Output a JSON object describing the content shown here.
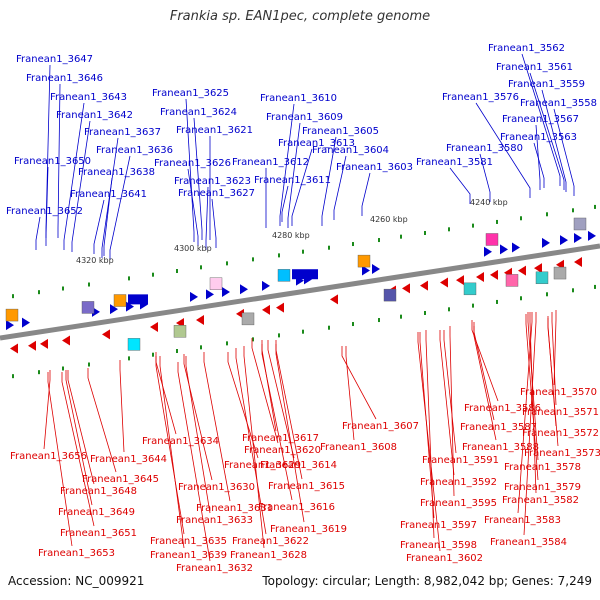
{
  "title": "Frankia sp. EAN1pec, complete genome",
  "footer": {
    "accession": "Accession: NC_009921",
    "summary": "Topology: circular; Length: 8,982,042 bp; Genes: 7,249"
  },
  "colors": {
    "forward": "#0000cc",
    "reverse": "#dd0000",
    "axis": "#888888"
  },
  "kbp_labels": [
    "4320 kbp",
    "4300 kbp",
    "4280 kbp",
    "4260 kbp",
    "4240 kbp"
  ],
  "forward_genes": [
    "Franean1_3647",
    "Franean1_3646",
    "Franean1_3643",
    "Franean1_3642",
    "Franean1_3637",
    "Franean1_3636",
    "Franean1_3650",
    "Franean1_3638",
    "Franean1_3641",
    "Franean1_3652",
    "Franean1_3625",
    "Franean1_3624",
    "Franean1_3621",
    "Franean1_3626",
    "Franean1_3623",
    "Franean1_3627",
    "Franean1_3610",
    "Franean1_3609",
    "Franean1_3613",
    "Franean1_3605",
    "Franean1_3612",
    "Franean1_3604",
    "Franean1_3611",
    "Franean1_3603",
    "Franean1_3562",
    "Franean1_3561",
    "Franean1_3576",
    "Franean1_3559",
    "Franean1_3558",
    "Franean1_3567",
    "Franean1_3580",
    "Franean1_3563",
    "Franean1_3581"
  ],
  "reverse_genes": [
    "Franean1_3570",
    "Franean1_3571",
    "Franean1_3586",
    "Franean1_3572",
    "Franean1_3607",
    "Franean1_3587",
    "Franean1_3573",
    "Franean1_3588",
    "Franean1_3634",
    "Franean1_3617",
    "Franean1_3608",
    "Franean1_3591",
    "Franean1_3578",
    "Franean1_3620",
    "Franean1_3656",
    "Franean1_3644",
    "Franean1_3629",
    "Franean1_3614",
    "Franean1_3592",
    "Franean1_3579",
    "Franean1_3645",
    "Franean1_3648",
    "Franean1_3630",
    "Franean1_3615",
    "Franean1_3595",
    "Franean1_3582",
    "Franean1_3631",
    "Franean1_3616",
    "Franean1_3649",
    "Franean1_3633",
    "Franean1_3619",
    "Franean1_3597",
    "Franean1_3583",
    "Franean1_3651",
    "Franean1_3635",
    "Franean1_3622",
    "Franean1_3598",
    "Franean1_3584",
    "Franean1_3653",
    "Franean1_3639",
    "Franean1_3628",
    "Franean1_3602",
    "Franean1_3632"
  ]
}
